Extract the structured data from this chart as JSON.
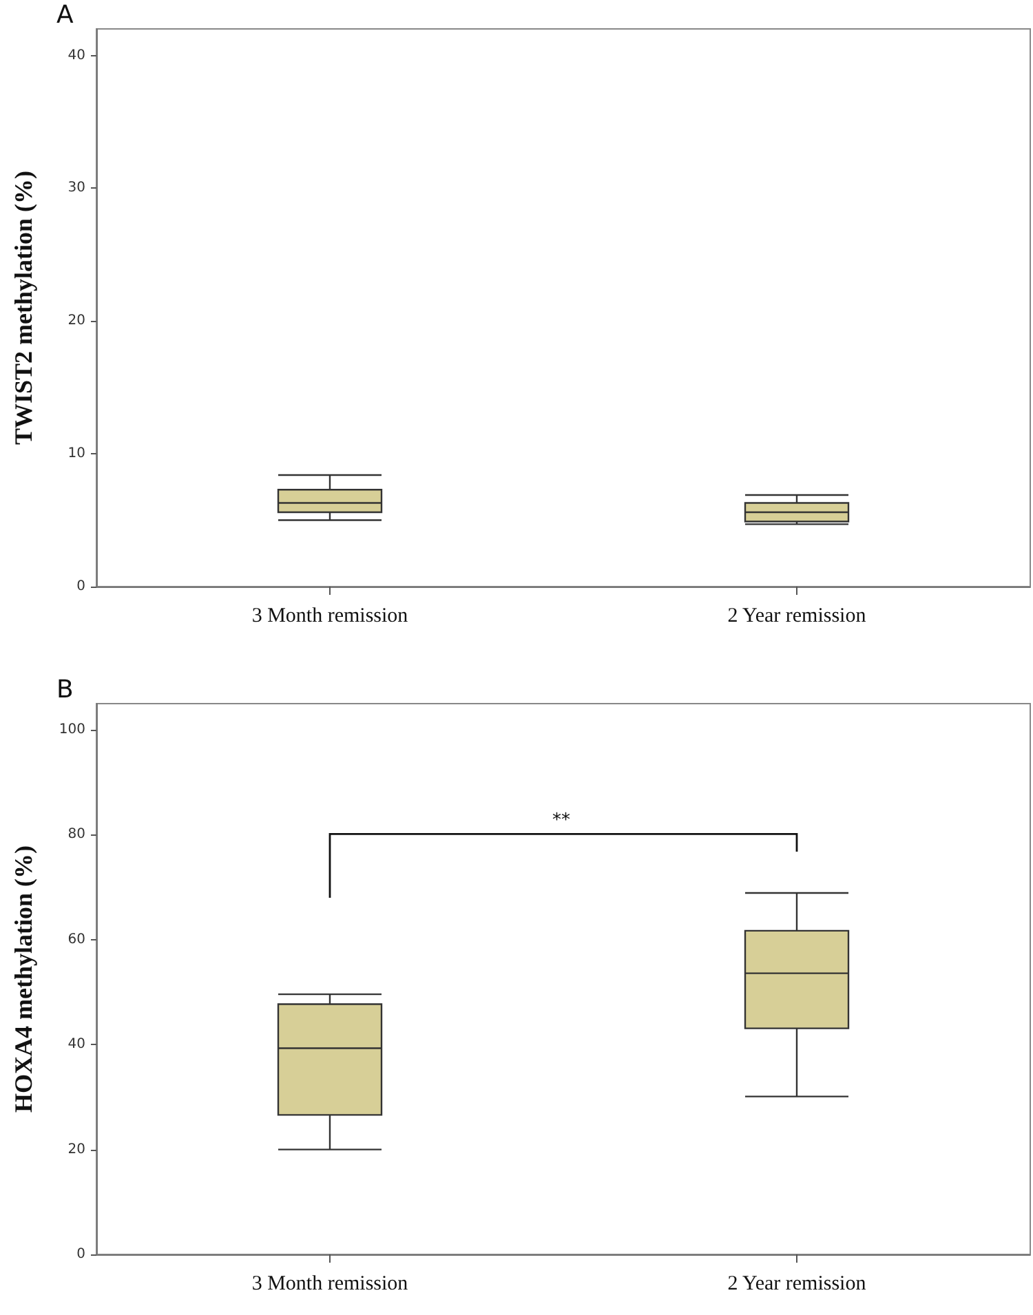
{
  "chart_data": [
    {
      "type": "box",
      "title": "A",
      "ylabel": "TWIST2 methylation (%)",
      "categories": [
        "3 Month remission",
        "2 Year remission"
      ],
      "color": "#d7cf97",
      "ylim": [
        0,
        42
      ],
      "yticks": [
        0,
        10,
        20,
        30,
        40
      ],
      "grid": false,
      "boxes": [
        {
          "low": 5.0,
          "q1": 5.6,
          "median": 6.3,
          "q3": 7.3,
          "high": 8.4
        },
        {
          "low": 4.7,
          "q1": 4.9,
          "median": 5.6,
          "q3": 6.3,
          "high": 6.9
        }
      ]
    },
    {
      "type": "box",
      "title": "B",
      "ylabel": "HOXA4 methylation (%)",
      "categories": [
        "3 Month remission",
        "2 Year remission"
      ],
      "color": "#d7cf97",
      "ylim": [
        0,
        105
      ],
      "yticks": [
        0,
        20,
        40,
        60,
        80,
        100
      ],
      "grid": false,
      "annotations": [
        "**"
      ],
      "boxes": [
        {
          "low": 20,
          "q1": 26.6,
          "median": 39.3,
          "q3": 47.7,
          "high": 49.6
        },
        {
          "low": 30.1,
          "q1": 43.1,
          "median": 53.6,
          "q3": 61.7,
          "high": 68.9
        }
      ]
    }
  ]
}
